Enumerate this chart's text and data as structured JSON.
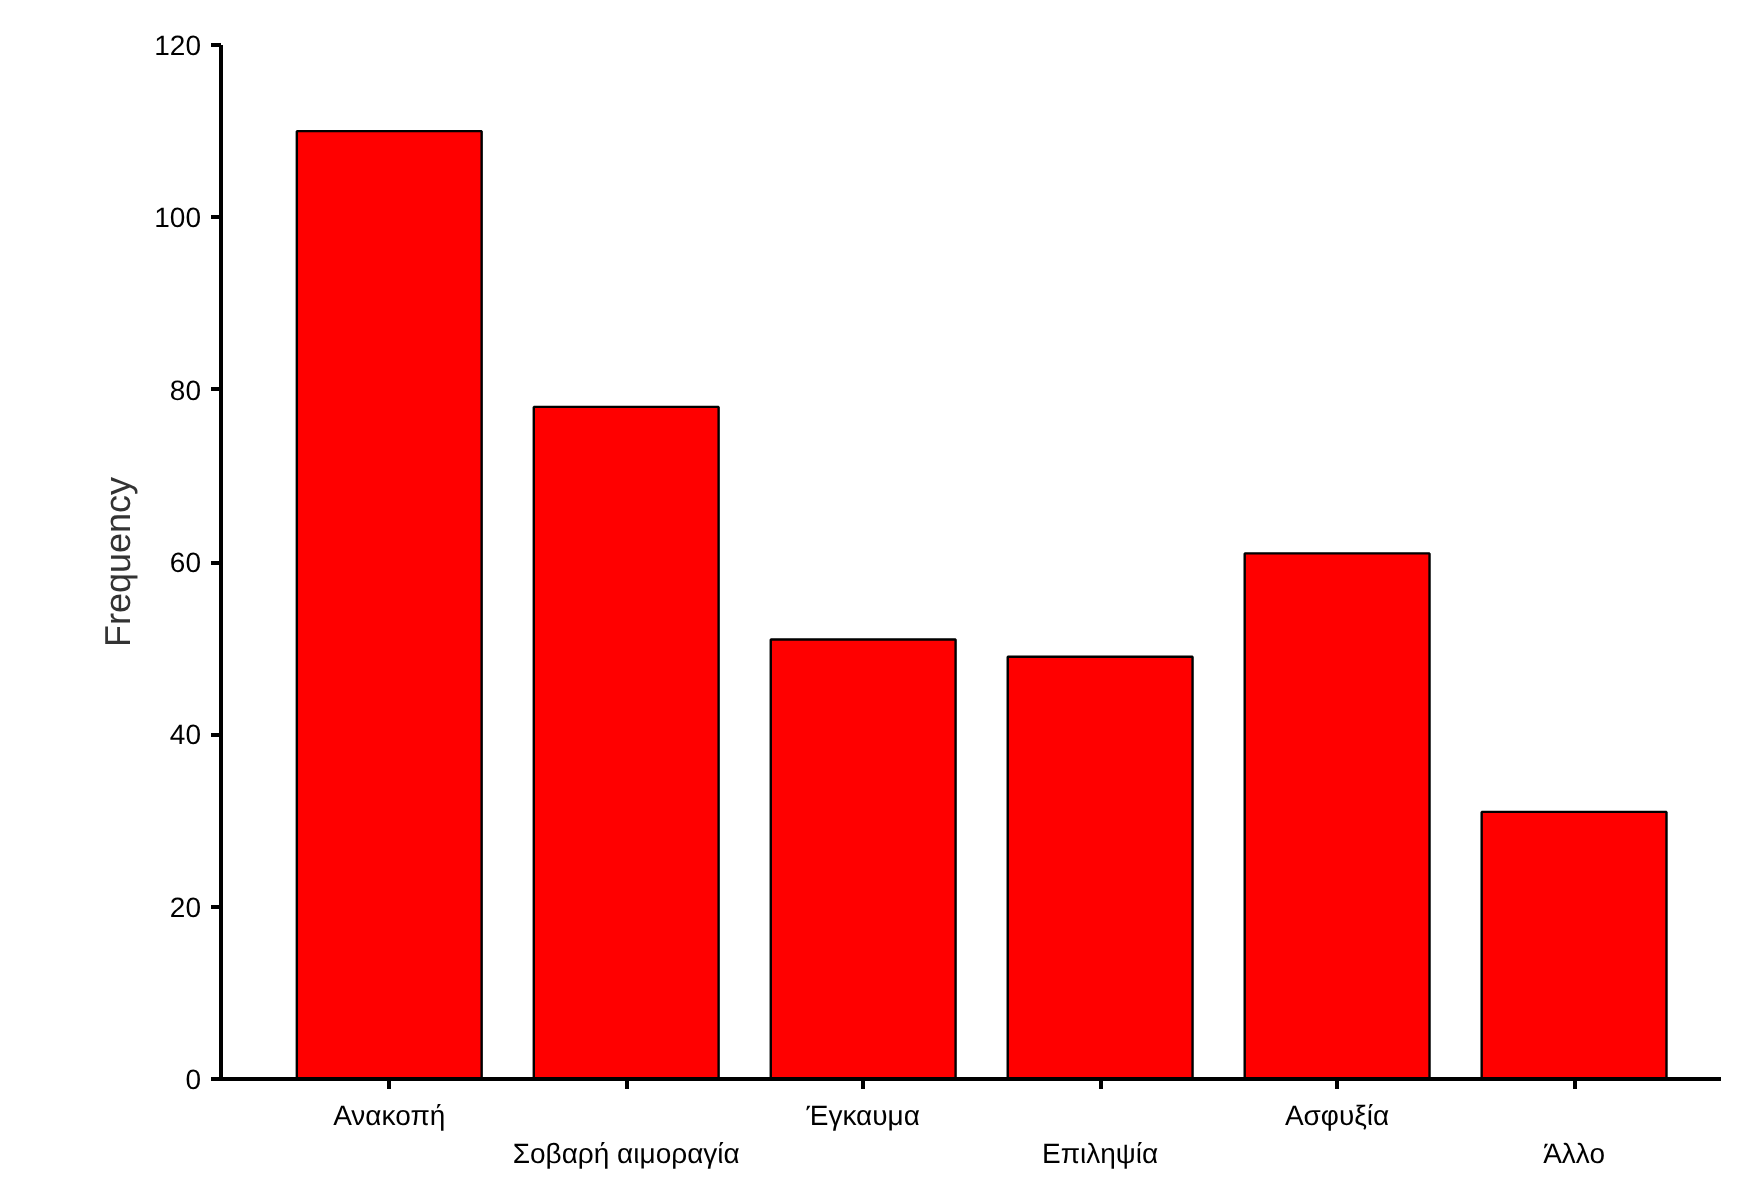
{
  "chart_data": {
    "type": "bar",
    "ylabel": "Frequency",
    "categories": [
      "Ανακοπή",
      "Σοβαρή αιμοραγία",
      "Έγκαυμα",
      "Επιληψία",
      "Ασφυξία",
      "Άλλο"
    ],
    "values": [
      110,
      78,
      51,
      49,
      61,
      31
    ],
    "color": "#ff0000",
    "ylim": [
      0,
      120
    ],
    "yticks": [
      0,
      20,
      40,
      60,
      80,
      100,
      120
    ],
    "grid": false
  }
}
